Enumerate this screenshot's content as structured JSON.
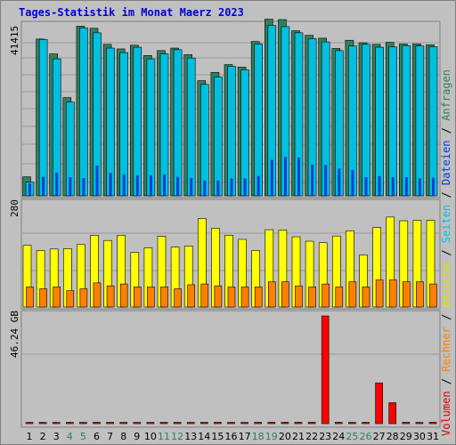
{
  "title": "Tages-Statistik im Monat Maerz 2023",
  "axis_labels": {
    "top_max": "41415",
    "middle_max": "280",
    "bottom_max": "46.24 GB"
  },
  "legend": [
    {
      "label": "Volumen",
      "color": "#d80000"
    },
    {
      "label": "Rechner",
      "color": "#ff8000"
    },
    {
      "label": "Besuche",
      "color": "#e0e000"
    },
    {
      "label": "Seiten",
      "color": "#00c0e0"
    },
    {
      "label": "Dateien",
      "color": "#0040d8"
    },
    {
      "label": "Anfragen",
      "color": "#308060"
    }
  ],
  "colors": {
    "weekend_label": "#308060",
    "weekday_label": "#000000"
  },
  "chart_data": [
    {
      "type": "bar",
      "title": "Tages-Statistik im Monat Maerz 2023",
      "categories": [
        "1",
        "2",
        "3",
        "4",
        "5",
        "6",
        "7",
        "8",
        "9",
        "10",
        "11",
        "12",
        "13",
        "14",
        "15",
        "16",
        "17",
        "18",
        "19",
        "20",
        "21",
        "22",
        "23",
        "24",
        "25",
        "26",
        "27",
        "28",
        "29",
        "30",
        "31"
      ],
      "weekend_days": [
        "4",
        "5",
        "11",
        "12",
        "18",
        "19",
        "25",
        "26"
      ],
      "ylim": [
        0,
        41415
      ],
      "series": [
        {
          "name": "Anfragen",
          "color": "#308060",
          "values": [
            4600,
            38000,
            34400,
            23800,
            41100,
            40600,
            36700,
            35600,
            36500,
            34000,
            35200,
            35800,
            34200,
            27900,
            29900,
            31800,
            31200,
            37400,
            42800,
            42700,
            40000,
            38900,
            38200,
            35700,
            37700,
            37100,
            36700,
            37200,
            36800,
            36800,
            36600
          ]
        },
        {
          "name": "Seiten",
          "color": "#00c0e0",
          "values": [
            3300,
            37900,
            33200,
            22700,
            40700,
            39500,
            35800,
            34700,
            36000,
            33200,
            34400,
            35400,
            33400,
            27000,
            28800,
            31400,
            30500,
            36800,
            41300,
            41000,
            39500,
            38100,
            37300,
            35200,
            36300,
            36700,
            36000,
            36100,
            36400,
            36300,
            36100
          ]
        },
        {
          "name": "Dateien",
          "color": "#0040d8",
          "values": [
            3000,
            4600,
            5600,
            4500,
            4300,
            7300,
            5500,
            5200,
            5000,
            5000,
            5200,
            4600,
            4300,
            3700,
            3700,
            4200,
            4200,
            4800,
            8700,
            9400,
            9300,
            7600,
            7500,
            6600,
            6300,
            4500,
            4800,
            4500,
            4500,
            4200,
            4400
          ]
        }
      ]
    },
    {
      "type": "bar",
      "ylim": [
        0,
        280
      ],
      "series": [
        {
          "name": "Besuche",
          "color": "#e0e000",
          "values": [
            166,
            152,
            156,
            157,
            168,
            193,
            179,
            193,
            147,
            159,
            190,
            161,
            164,
            238,
            212,
            193,
            182,
            152,
            208,
            207,
            189,
            177,
            173,
            191,
            205,
            140,
            214,
            242,
            232,
            233,
            233
          ]
        },
        {
          "name": "Rechner",
          "color": "#ff8000",
          "values": [
            54,
            49,
            54,
            44,
            49,
            65,
            57,
            62,
            54,
            54,
            54,
            49,
            60,
            62,
            57,
            54,
            54,
            54,
            68,
            68,
            57,
            54,
            62,
            54,
            68,
            54,
            73,
            73,
            68,
            68,
            62
          ]
        }
      ]
    },
    {
      "type": "bar",
      "unit": "GB",
      "ylim": [
        0,
        46.24
      ],
      "series": [
        {
          "name": "Volumen",
          "color": "#d80000",
          "values": [
            0.3,
            0.3,
            0.3,
            0.3,
            0.3,
            0.6,
            0.3,
            0.3,
            0.3,
            0.3,
            0.3,
            0.3,
            0.3,
            0.3,
            0.6,
            0.3,
            0.3,
            0.3,
            0.6,
            0.6,
            0.6,
            0.6,
            46.24,
            0.6,
            0.3,
            0.3,
            17.5,
            9.0,
            0.3,
            0.3,
            0.6
          ]
        }
      ]
    }
  ]
}
